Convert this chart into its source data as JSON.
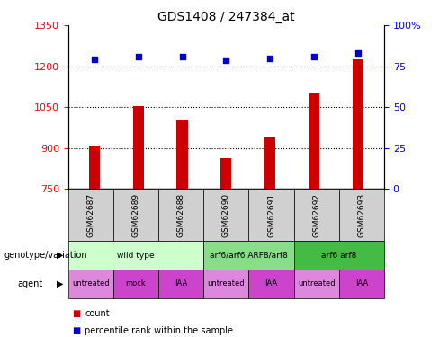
{
  "title": "GDS1408 / 247384_at",
  "samples": [
    "GSM62687",
    "GSM62689",
    "GSM62688",
    "GSM62690",
    "GSM62691",
    "GSM62692",
    "GSM62693"
  ],
  "bar_values": [
    907,
    1055,
    1000,
    862,
    940,
    1100,
    1225
  ],
  "dot_values": [
    79,
    81,
    81,
    78.5,
    79.5,
    81,
    83
  ],
  "bar_color": "#cc0000",
  "dot_color": "#0000cc",
  "ylim_left": [
    750,
    1350
  ],
  "ylim_right": [
    0,
    100
  ],
  "yticks_left": [
    750,
    900,
    1050,
    1200,
    1350
  ],
  "ytick_labels_left": [
    "750",
    "900",
    "1050",
    "1200",
    "1350"
  ],
  "yticks_right": [
    0,
    25,
    50,
    75,
    100
  ],
  "ytick_labels_right": [
    "0",
    "25",
    "50",
    "75",
    "100%"
  ],
  "grid_values": [
    900,
    1050,
    1200
  ],
  "genotype_groups": [
    {
      "label": "wild type",
      "start": 0,
      "end": 3,
      "color": "#ccffcc"
    },
    {
      "label": "arf6/arf6 ARF8/arf8",
      "start": 3,
      "end": 5,
      "color": "#88dd88"
    },
    {
      "label": "arf6 arf8",
      "start": 5,
      "end": 7,
      "color": "#44bb44"
    }
  ],
  "agent_labels": [
    "untreated",
    "mock",
    "IAA",
    "untreated",
    "IAA",
    "untreated",
    "IAA"
  ],
  "agent_colors": [
    "#dd88dd",
    "#cc44cc",
    "#cc44cc",
    "#dd88dd",
    "#cc44cc",
    "#dd88dd",
    "#cc44cc"
  ],
  "sample_box_color": "#d0d0d0",
  "legend_items": [
    {
      "color": "#cc0000",
      "label": "count"
    },
    {
      "color": "#0000cc",
      "label": "percentile rank within the sample"
    }
  ],
  "bar_width": 0.25
}
